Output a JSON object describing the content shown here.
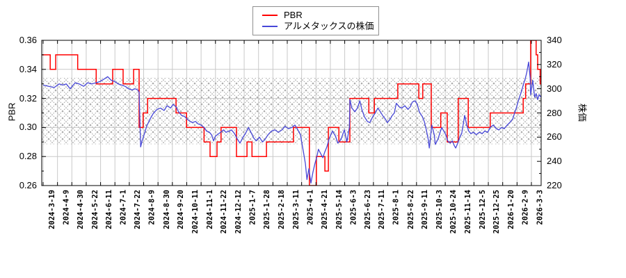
{
  "legend": {
    "items": [
      {
        "label": "PBR",
        "color": "#ff0000"
      },
      {
        "label": "アルメタックスの株価",
        "color": "#4747d8"
      }
    ]
  },
  "chart_data": {
    "type": "line",
    "title": "",
    "legend_position": "top-center",
    "grid": true,
    "colors": {
      "grid": "#c9c9c9",
      "hatch": "#a9a9a9",
      "border": "#000000",
      "background": "#ffffff"
    },
    "y_left": {
      "label": "PBR",
      "min": 0.26,
      "max": 0.36,
      "tick_labels": [
        "0.26",
        "0.28",
        "0.30",
        "0.32",
        "0.34",
        "0.36"
      ],
      "tick_values": [
        0.26,
        0.28,
        0.3,
        0.32,
        0.34,
        0.36
      ],
      "minor_step": 0.01
    },
    "y_right": {
      "label": "株価",
      "min": 220,
      "max": 340,
      "tick_labels": [
        "220",
        "240",
        "260",
        "280",
        "300",
        "320",
        "340"
      ],
      "tick_values": [
        220,
        240,
        260,
        280,
        300,
        320,
        340
      ],
      "minor_step": 10
    },
    "x_ticks": [
      "2024-3-19",
      "2024-4-9",
      "2024-4-30",
      "2024-5-22",
      "2024-6-11",
      "2024-7-1",
      "2024-7-22",
      "2024-8-9",
      "2024-8-30",
      "2024-9-20",
      "2024-10-11",
      "2024-11-1",
      "2024-11-22",
      "2024-12-12",
      "2025-1-7",
      "2025-1-28",
      "2025-2-18",
      "2025-3-11",
      "2025-4-1",
      "2025-4-21",
      "2025-5-14",
      "2025-6-3",
      "2025-6-23",
      "2025-7-11",
      "2025-8-1",
      "2025-8-22",
      "2025-9-11",
      "2025-10-3",
      "2025-10-24",
      "2025-11-14",
      "2025-12-5",
      "2025-12-25",
      "2026-1-20",
      "2026-2-9",
      "2026-3-3"
    ],
    "hatch_band": {
      "axis": "left",
      "top": 0.3345,
      "bottom": 0.2885
    },
    "series": [
      {
        "name": "PBR",
        "axis": "left",
        "style": "step",
        "color": "#ff0000",
        "segments": [
          [
            0.0,
            0.017,
            0.35
          ],
          [
            0.017,
            0.028,
            0.34
          ],
          [
            0.028,
            0.072,
            0.35
          ],
          [
            0.072,
            0.109,
            0.34
          ],
          [
            0.109,
            0.142,
            0.33
          ],
          [
            0.142,
            0.163,
            0.34
          ],
          [
            0.163,
            0.184,
            0.33
          ],
          [
            0.184,
            0.195,
            0.34
          ],
          [
            0.195,
            0.203,
            0.3
          ],
          [
            0.203,
            0.212,
            0.31
          ],
          [
            0.212,
            0.269,
            0.32
          ],
          [
            0.269,
            0.29,
            0.31
          ],
          [
            0.29,
            0.325,
            0.3
          ],
          [
            0.325,
            0.337,
            0.29
          ],
          [
            0.337,
            0.351,
            0.28
          ],
          [
            0.351,
            0.359,
            0.29
          ],
          [
            0.359,
            0.39,
            0.3
          ],
          [
            0.39,
            0.411,
            0.28
          ],
          [
            0.411,
            0.421,
            0.29
          ],
          [
            0.421,
            0.45,
            0.28
          ],
          [
            0.45,
            0.504,
            0.29
          ],
          [
            0.504,
            0.536,
            0.3
          ],
          [
            0.536,
            0.55,
            0.26
          ],
          [
            0.55,
            0.567,
            0.28
          ],
          [
            0.567,
            0.574,
            0.27
          ],
          [
            0.574,
            0.595,
            0.3
          ],
          [
            0.595,
            0.617,
            0.29
          ],
          [
            0.617,
            0.655,
            0.32
          ],
          [
            0.655,
            0.666,
            0.31
          ],
          [
            0.666,
            0.713,
            0.32
          ],
          [
            0.713,
            0.755,
            0.33
          ],
          [
            0.755,
            0.763,
            0.32
          ],
          [
            0.763,
            0.78,
            0.33
          ],
          [
            0.78,
            0.799,
            0.3
          ],
          [
            0.799,
            0.812,
            0.31
          ],
          [
            0.812,
            0.834,
            0.29
          ],
          [
            0.834,
            0.854,
            0.32
          ],
          [
            0.854,
            0.898,
            0.3
          ],
          [
            0.898,
            0.964,
            0.31
          ],
          [
            0.964,
            0.969,
            0.32
          ],
          [
            0.969,
            0.979,
            0.33
          ],
          [
            0.979,
            0.99,
            0.36
          ],
          [
            0.99,
            0.993,
            0.35
          ],
          [
            0.993,
            0.998,
            0.34
          ],
          [
            0.998,
            1.0,
            0.33
          ]
        ]
      },
      {
        "name": "アルメタックスの株価",
        "axis": "right",
        "style": "line",
        "color": "#4747d8",
        "points": [
          [
            0.003,
            303
          ],
          [
            0.014,
            302
          ],
          [
            0.025,
            301
          ],
          [
            0.035,
            304
          ],
          [
            0.042,
            303
          ],
          [
            0.049,
            304
          ],
          [
            0.057,
            300
          ],
          [
            0.067,
            305
          ],
          [
            0.075,
            304
          ],
          [
            0.084,
            302
          ],
          [
            0.092,
            305
          ],
          [
            0.1,
            304
          ],
          [
            0.109,
            305
          ],
          [
            0.117,
            306
          ],
          [
            0.125,
            308
          ],
          [
            0.132,
            310
          ],
          [
            0.139,
            307
          ],
          [
            0.146,
            306
          ],
          [
            0.153,
            304
          ],
          [
            0.16,
            303
          ],
          [
            0.167,
            302
          ],
          [
            0.174,
            300
          ],
          [
            0.181,
            299
          ],
          [
            0.187,
            300
          ],
          [
            0.192,
            299
          ],
          [
            0.195,
            297
          ],
          [
            0.198,
            252
          ],
          [
            0.201,
            257
          ],
          [
            0.205,
            262
          ],
          [
            0.21,
            269
          ],
          [
            0.217,
            275
          ],
          [
            0.224,
            280
          ],
          [
            0.231,
            283
          ],
          [
            0.238,
            284
          ],
          [
            0.245,
            282
          ],
          [
            0.251,
            286
          ],
          [
            0.258,
            284
          ],
          [
            0.263,
            287
          ],
          [
            0.269,
            285
          ],
          [
            0.274,
            281
          ],
          [
            0.28,
            278
          ],
          [
            0.286,
            277
          ],
          [
            0.291,
            275
          ],
          [
            0.297,
            273
          ],
          [
            0.302,
            272
          ],
          [
            0.308,
            273
          ],
          [
            0.313,
            271
          ],
          [
            0.319,
            270
          ],
          [
            0.325,
            268
          ],
          [
            0.33,
            265
          ],
          [
            0.336,
            264
          ],
          [
            0.34,
            262
          ],
          [
            0.344,
            257
          ],
          [
            0.348,
            261
          ],
          [
            0.352,
            262
          ],
          [
            0.358,
            264
          ],
          [
            0.364,
            266
          ],
          [
            0.369,
            264
          ],
          [
            0.375,
            265
          ],
          [
            0.38,
            266
          ],
          [
            0.386,
            263
          ],
          [
            0.391,
            259
          ],
          [
            0.397,
            255
          ],
          [
            0.403,
            260
          ],
          [
            0.408,
            263
          ],
          [
            0.414,
            268
          ],
          [
            0.419,
            264
          ],
          [
            0.425,
            259
          ],
          [
            0.43,
            257
          ],
          [
            0.436,
            260
          ],
          [
            0.442,
            256
          ],
          [
            0.447,
            258
          ],
          [
            0.453,
            262
          ],
          [
            0.46,
            265
          ],
          [
            0.467,
            266
          ],
          [
            0.474,
            264
          ],
          [
            0.481,
            266
          ],
          [
            0.487,
            269
          ],
          [
            0.494,
            267
          ],
          [
            0.501,
            268
          ],
          [
            0.507,
            270
          ],
          [
            0.513,
            266
          ],
          [
            0.518,
            262
          ],
          [
            0.524,
            248
          ],
          [
            0.528,
            238
          ],
          [
            0.531,
            225
          ],
          [
            0.535,
            234
          ],
          [
            0.539,
            222
          ],
          [
            0.543,
            231
          ],
          [
            0.547,
            238
          ],
          [
            0.551,
            244
          ],
          [
            0.554,
            250
          ],
          [
            0.559,
            246
          ],
          [
            0.563,
            243
          ],
          [
            0.567,
            248
          ],
          [
            0.571,
            252
          ],
          [
            0.575,
            258
          ],
          [
            0.582,
            265
          ],
          [
            0.588,
            261
          ],
          [
            0.593,
            255
          ],
          [
            0.599,
            258
          ],
          [
            0.606,
            266
          ],
          [
            0.611,
            256
          ],
          [
            0.616,
            268
          ],
          [
            0.617,
            291
          ],
          [
            0.621,
            284
          ],
          [
            0.627,
            281
          ],
          [
            0.632,
            284
          ],
          [
            0.637,
            290
          ],
          [
            0.641,
            283
          ],
          [
            0.646,
            277
          ],
          [
            0.652,
            273
          ],
          [
            0.657,
            272
          ],
          [
            0.663,
            277
          ],
          [
            0.668,
            280
          ],
          [
            0.673,
            284
          ],
          [
            0.678,
            281
          ],
          [
            0.684,
            277
          ],
          [
            0.688,
            275
          ],
          [
            0.692,
            272
          ],
          [
            0.698,
            275
          ],
          [
            0.702,
            278
          ],
          [
            0.706,
            280
          ],
          [
            0.71,
            288
          ],
          [
            0.716,
            285
          ],
          [
            0.721,
            284
          ],
          [
            0.727,
            286
          ],
          [
            0.733,
            283
          ],
          [
            0.738,
            285
          ],
          [
            0.742,
            289
          ],
          [
            0.748,
            290
          ],
          [
            0.752,
            287
          ],
          [
            0.756,
            281
          ],
          [
            0.762,
            277
          ],
          [
            0.766,
            273
          ],
          [
            0.77,
            266
          ],
          [
            0.774,
            258
          ],
          [
            0.776,
            251
          ],
          [
            0.779,
            262
          ],
          [
            0.781,
            270
          ],
          [
            0.786,
            262
          ],
          [
            0.788,
            254
          ],
          [
            0.793,
            258
          ],
          [
            0.797,
            263
          ],
          [
            0.801,
            268
          ],
          [
            0.805,
            265
          ],
          [
            0.809,
            262
          ],
          [
            0.813,
            257
          ],
          [
            0.818,
            255
          ],
          [
            0.822,
            257
          ],
          [
            0.826,
            253
          ],
          [
            0.829,
            251
          ],
          [
            0.833,
            255
          ],
          [
            0.837,
            260
          ],
          [
            0.841,
            263
          ],
          [
            0.847,
            278
          ],
          [
            0.851,
            270
          ],
          [
            0.855,
            265
          ],
          [
            0.859,
            263
          ],
          [
            0.865,
            264
          ],
          [
            0.87,
            262
          ],
          [
            0.876,
            264
          ],
          [
            0.882,
            263
          ],
          [
            0.887,
            265
          ],
          [
            0.893,
            264
          ],
          [
            0.898,
            268
          ],
          [
            0.904,
            270
          ],
          [
            0.91,
            267
          ],
          [
            0.915,
            266
          ],
          [
            0.921,
            268
          ],
          [
            0.926,
            267
          ],
          [
            0.932,
            270
          ],
          [
            0.937,
            272
          ],
          [
            0.943,
            275
          ],
          [
            0.947,
            280
          ],
          [
            0.951,
            285
          ],
          [
            0.955,
            291
          ],
          [
            0.96,
            297
          ],
          [
            0.964,
            303
          ],
          [
            0.968,
            308
          ],
          [
            0.971,
            313
          ],
          [
            0.975,
            322
          ],
          [
            0.978,
            309
          ],
          [
            0.979,
            295
          ],
          [
            0.983,
            307
          ],
          [
            0.987,
            293
          ],
          [
            0.99,
            296
          ],
          [
            0.993,
            291
          ],
          [
            0.996,
            295
          ],
          [
            1.0,
            293
          ]
        ]
      }
    ]
  }
}
